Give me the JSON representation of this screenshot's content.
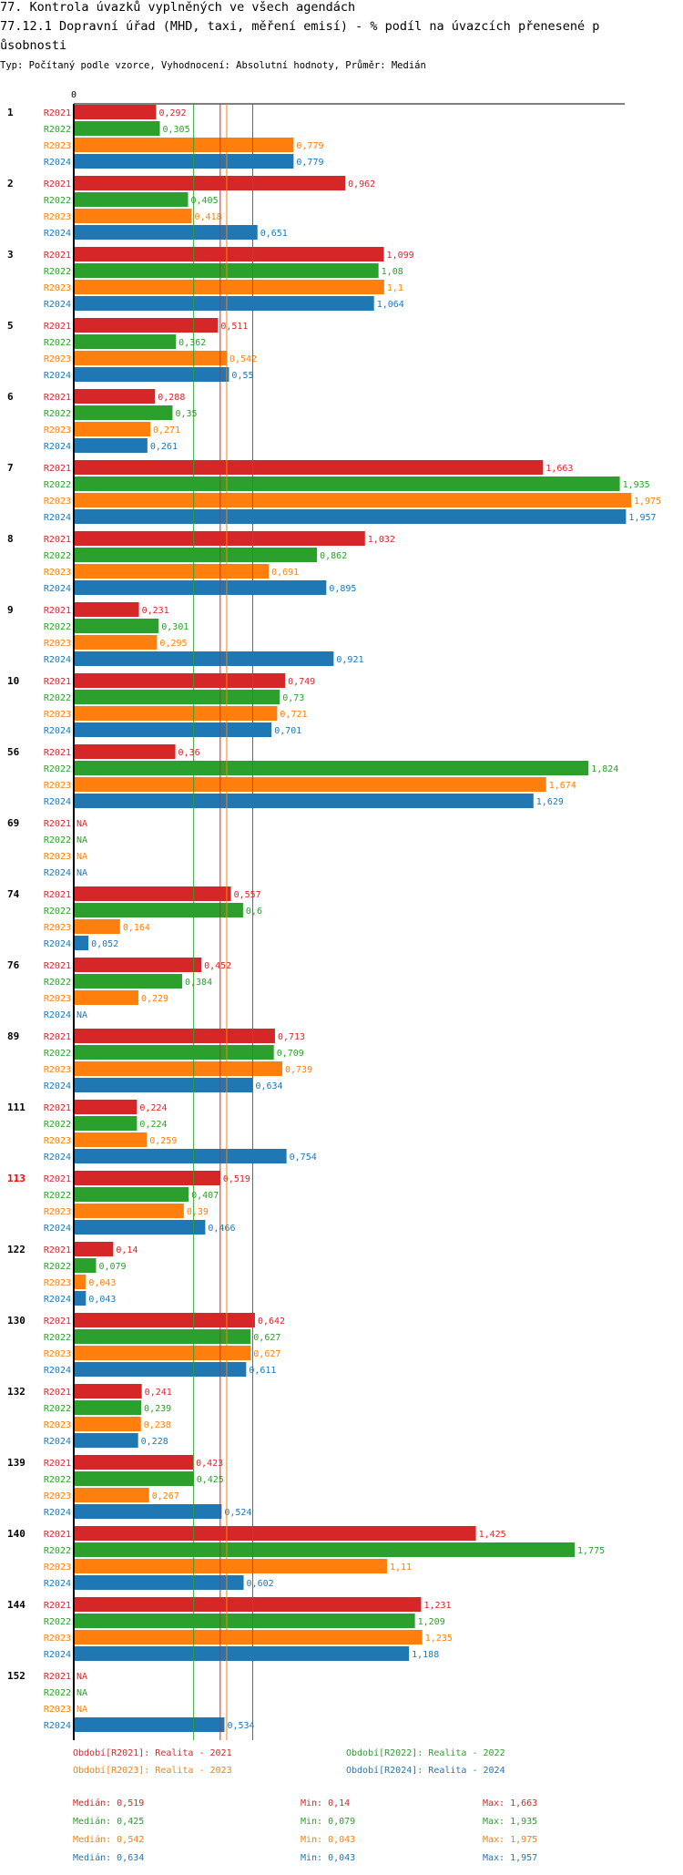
{
  "header": {
    "title_line1": "77. Kontrola úvazků vyplněných ve všech agendách",
    "title_line2": "77.12.1 Dopravní úřad (MHD, taxi, měření emisí) - % podíl na úvazcích přenesené p",
    "title_line3": "ůsobnosti",
    "subtitle": "Typ: Počítaný podle vzorce, Vyhodnocení: Absolutní hodnoty, Průměr: Medián"
  },
  "colors": {
    "R2021": "#d62728",
    "R2022": "#2ca02c",
    "R2023": "#ff7f0e",
    "R2024": "#1f77b4",
    "highlight": "#ff0000"
  },
  "chart_data": {
    "type": "bar",
    "orientation": "horizontal",
    "axis_zero_label": "0",
    "xlim": [
      0,
      1.975
    ],
    "series_names": [
      "R2021",
      "R2022",
      "R2023",
      "R2024"
    ],
    "groups": [
      {
        "label": "1",
        "values": [
          "0,292",
          "0,305",
          "0,779",
          "0,779"
        ]
      },
      {
        "label": "2",
        "values": [
          "0,962",
          "0,405",
          "0,418",
          "0,651"
        ]
      },
      {
        "label": "3",
        "values": [
          "1,099",
          "1,08",
          "1,1",
          "1,064"
        ]
      },
      {
        "label": "5",
        "values": [
          "0,511",
          "0,362",
          "0,542",
          "0,55"
        ]
      },
      {
        "label": "6",
        "values": [
          "0,288",
          "0,35",
          "0,271",
          "0,261"
        ]
      },
      {
        "label": "7",
        "values": [
          "1,663",
          "1,935",
          "1,975",
          "1,957"
        ]
      },
      {
        "label": "8",
        "values": [
          "1,032",
          "0,862",
          "0,691",
          "0,895"
        ]
      },
      {
        "label": "9",
        "values": [
          "0,231",
          "0,301",
          "0,295",
          "0,921"
        ]
      },
      {
        "label": "10",
        "values": [
          "0,749",
          "0,73",
          "0,721",
          "0,701"
        ]
      },
      {
        "label": "56",
        "values": [
          "0,36",
          "1,824",
          "1,674",
          "1,629"
        ]
      },
      {
        "label": "69",
        "values": [
          "NA",
          "NA",
          "NA",
          "NA"
        ]
      },
      {
        "label": "74",
        "values": [
          "0,557",
          "0,6",
          "0,164",
          "0,052"
        ]
      },
      {
        "label": "76",
        "values": [
          "0,452",
          "0,384",
          "0,229",
          "NA"
        ]
      },
      {
        "label": "89",
        "values": [
          "0,713",
          "0,709",
          "0,739",
          "0,634"
        ]
      },
      {
        "label": "111",
        "values": [
          "0,224",
          "0,224",
          "0,259",
          "0,754"
        ]
      },
      {
        "label": "113",
        "values": [
          "0,519",
          "0,407",
          "0,39",
          "0,466"
        ],
        "highlight": true
      },
      {
        "label": "122",
        "values": [
          "0,14",
          "0,079",
          "0,043",
          "0,043"
        ]
      },
      {
        "label": "130",
        "values": [
          "0,642",
          "0,627",
          "0,627",
          "0,611"
        ]
      },
      {
        "label": "132",
        "values": [
          "0,241",
          "0,239",
          "0,238",
          "0,228"
        ]
      },
      {
        "label": "139",
        "values": [
          "0,423",
          "0,425",
          "0,267",
          "0,524"
        ]
      },
      {
        "label": "140",
        "values": [
          "1,425",
          "1,775",
          "1,11",
          "0,602"
        ]
      },
      {
        "label": "144",
        "values": [
          "1,231",
          "1,209",
          "1,235",
          "1,188"
        ]
      },
      {
        "label": "152",
        "values": [
          "NA",
          "NA",
          "NA",
          "0,534"
        ]
      }
    ],
    "medians": [
      0.519,
      0.425,
      0.542,
      0.634
    ]
  },
  "legend": [
    {
      "text": "Období[R2021]: Realita - 2021",
      "series": "R2021"
    },
    {
      "text": "Období[R2022]: Realita - 2022",
      "series": "R2022"
    },
    {
      "text": "Období[R2023]: Realita - 2023",
      "series": "R2023"
    },
    {
      "text": "Období[R2024]: Realita - 2024",
      "series": "R2024"
    }
  ],
  "stats": [
    {
      "series": "R2021",
      "median": "Medián: 0,519",
      "min": "Min: 0,14",
      "max": "Max: 1,663"
    },
    {
      "series": "R2022",
      "median": "Medián: 0,425",
      "min": "Min: 0,079",
      "max": "Max: 1,935"
    },
    {
      "series": "R2023",
      "median": "Medián: 0,542",
      "min": "Min: 0,043",
      "max": "Max: 1,975"
    },
    {
      "series": "R2024",
      "median": "Medián: 0,634",
      "min": "Min: 0,043",
      "max": "Max: 1,957"
    }
  ]
}
